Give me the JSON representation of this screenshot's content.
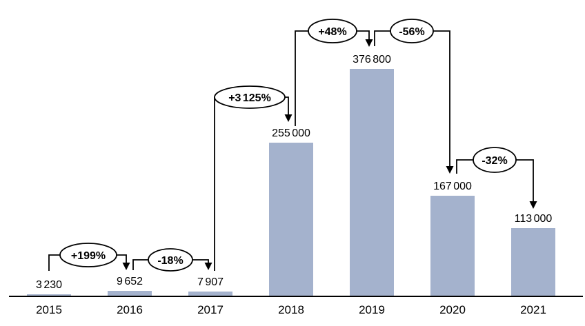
{
  "chart_data": {
    "type": "bar",
    "title": "",
    "xlabel": "",
    "ylabel": "",
    "categories": [
      "2015",
      "2016",
      "2017",
      "2018",
      "2019",
      "2020",
      "2021"
    ],
    "values": [
      3230,
      9652,
      7907,
      255000,
      376800,
      167000,
      113000
    ],
    "value_labels": [
      "3 230",
      "9 652",
      "7 907",
      "255 000",
      "376 800",
      "167 000",
      "113 000"
    ],
    "ylim": [
      0,
      376800
    ],
    "grid": false,
    "legend": false,
    "bar_color": "#a4b2cd",
    "axis_color": "#000000",
    "annotation_style": {
      "shape": "ellipse",
      "fill": "#ffffff",
      "stroke": "#000000"
    },
    "annotations": [
      {
        "from": "2015",
        "to": "2016",
        "label": "+199%"
      },
      {
        "from": "2016",
        "to": "2017",
        "label": "-18%"
      },
      {
        "from": "2017",
        "to": "2018",
        "label": "+3 125%"
      },
      {
        "from": "2018",
        "to": "2019",
        "label": "+48%"
      },
      {
        "from": "2019",
        "to": "2020",
        "label": "-56%"
      },
      {
        "from": "2020",
        "to": "2021",
        "label": "-32%"
      }
    ]
  }
}
